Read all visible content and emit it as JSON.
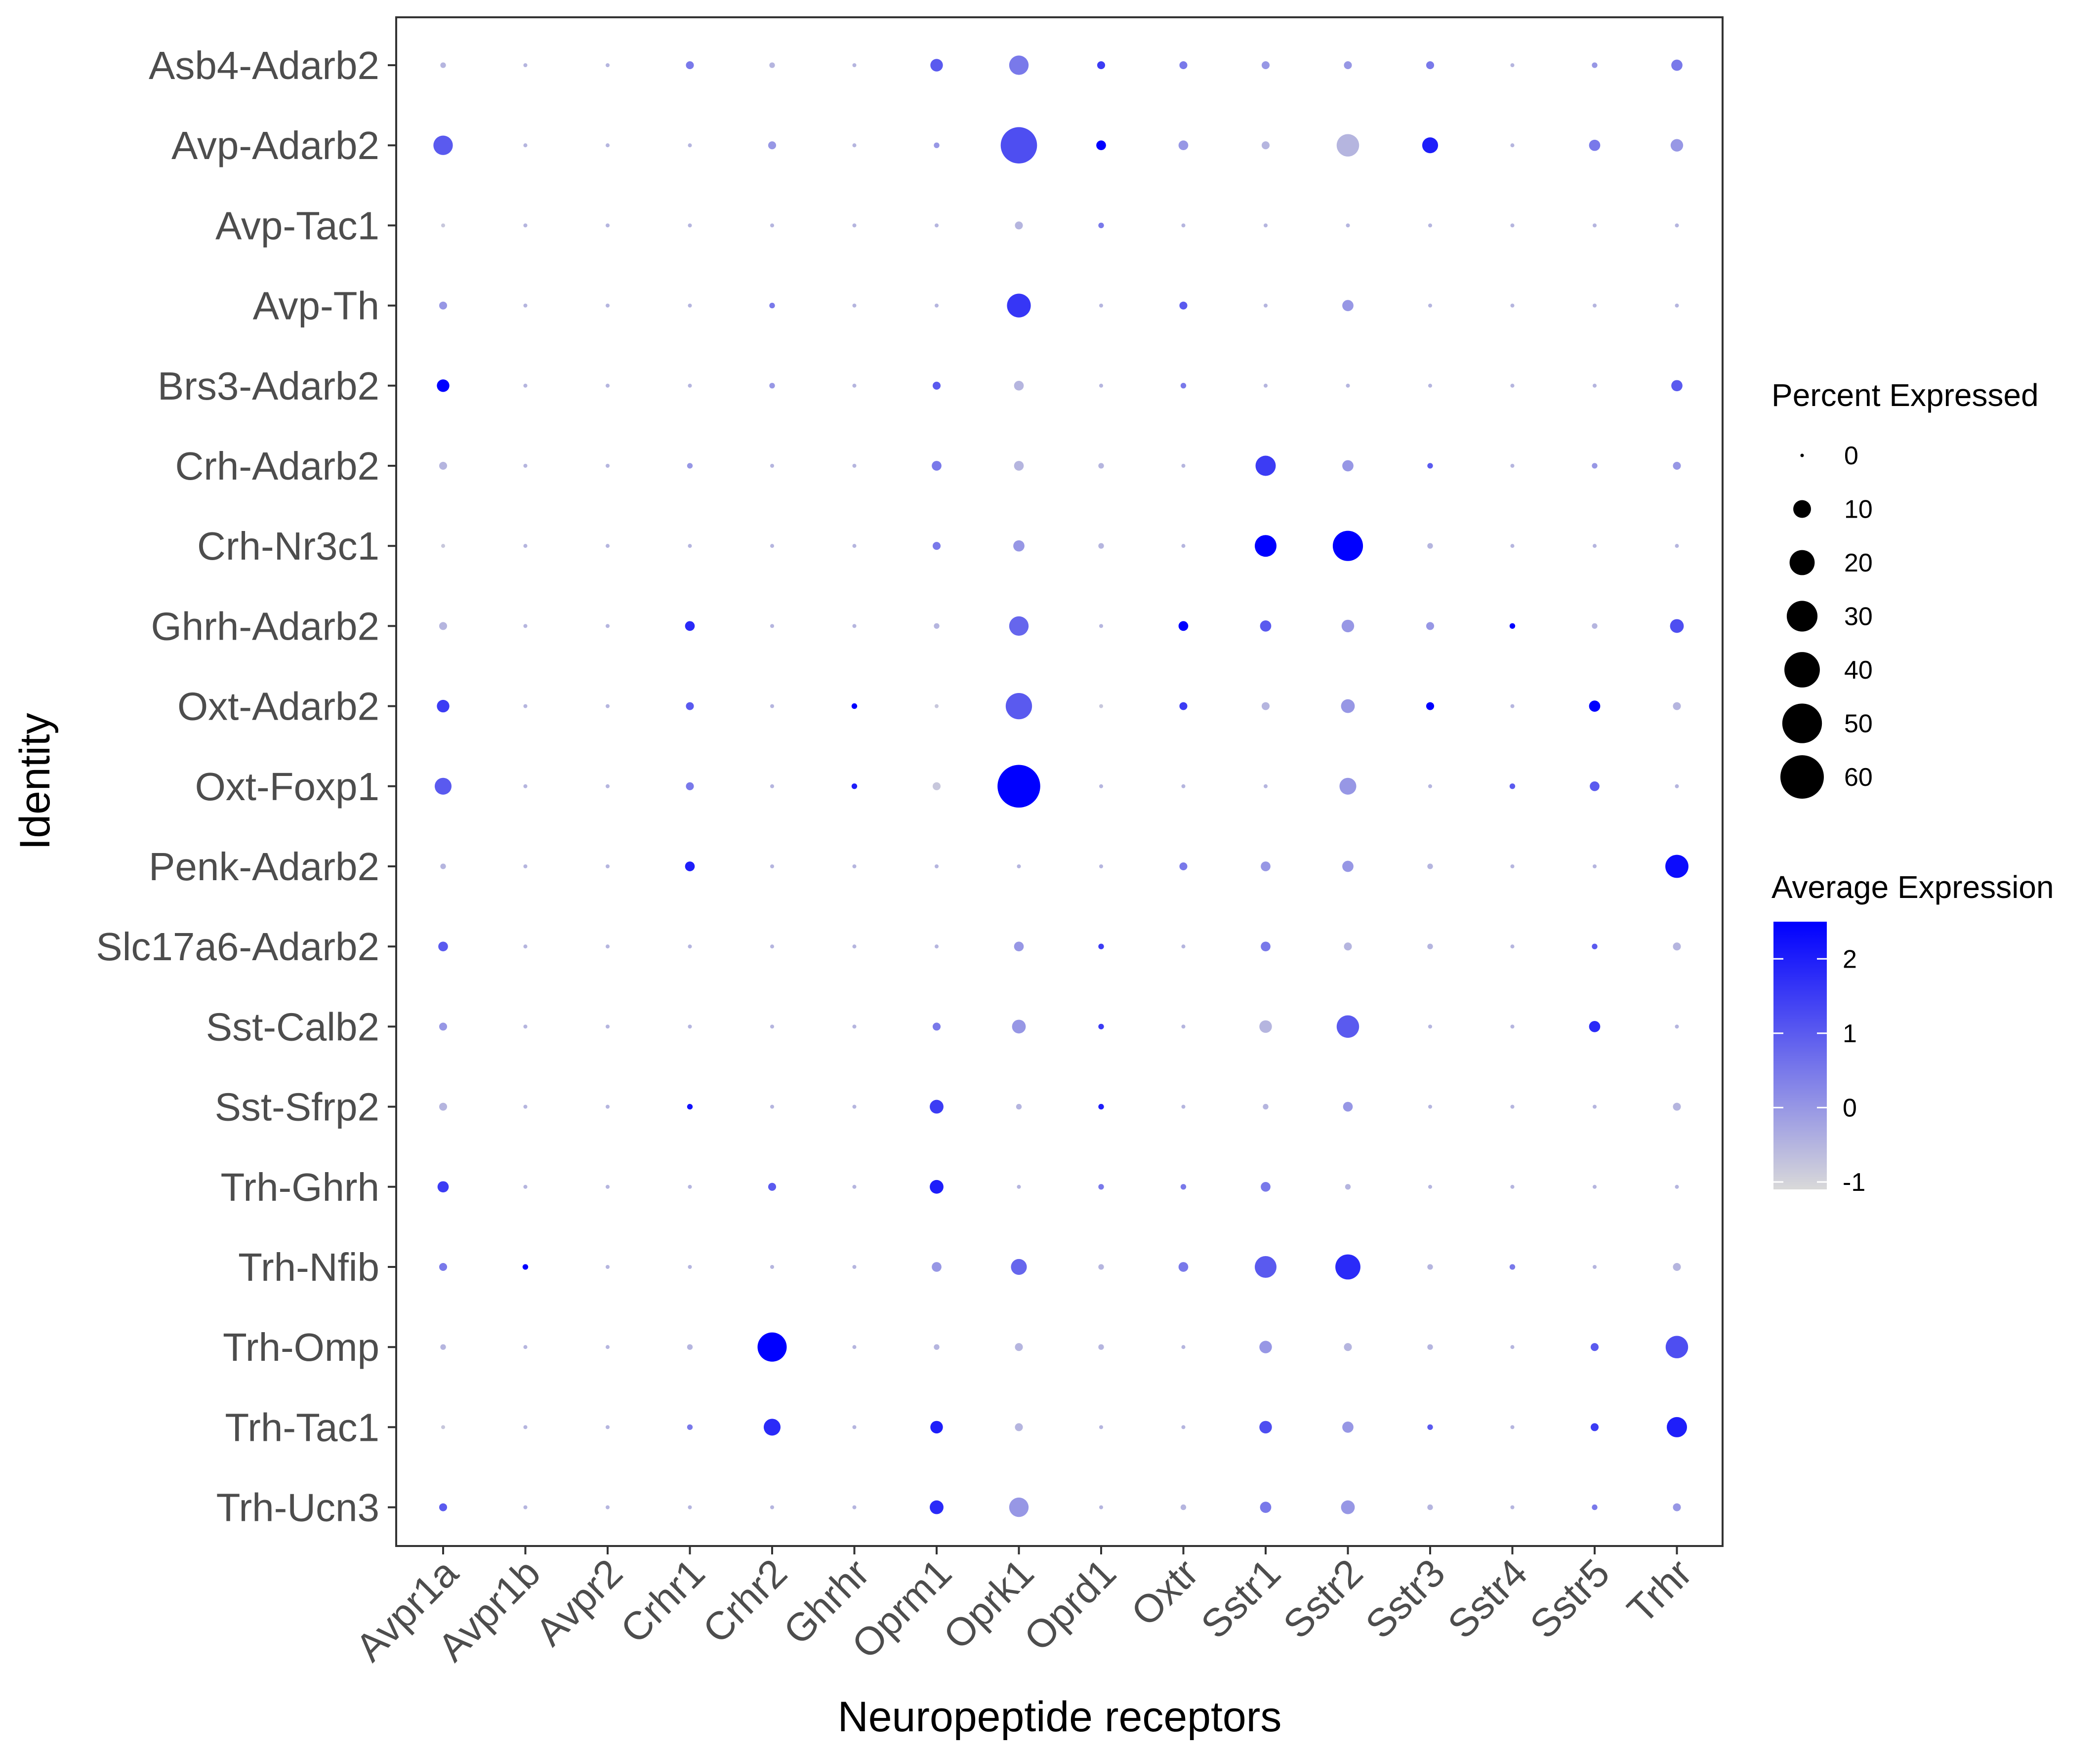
{
  "chart_data": {
    "type": "dotplot",
    "xlabel": "Neuropeptide receptors",
    "ylabel": "Identity",
    "x_categories": [
      "Avpr1a",
      "Avpr1b",
      "Avpr2",
      "Crhr1",
      "Crhr2",
      "Ghrhr",
      "Oprm1",
      "Oprk1",
      "Oprd1",
      "Oxtr",
      "Sstr1",
      "Sstr2",
      "Sstr3",
      "Sstr4",
      "Sstr5",
      "Trhr"
    ],
    "y_categories": [
      "Asb4-Adarb2",
      "Avp-Adarb2",
      "Avp-Tac1",
      "Avp-Th",
      "Brs3-Adarb2",
      "Crh-Adarb2",
      "Crh-Nr3c1",
      "Ghrh-Adarb2",
      "Oxt-Adarb2",
      "Oxt-Foxp1",
      "Penk-Adarb2",
      "Slc17a6-Adarb2",
      "Sst-Calb2",
      "Sst-Sfrp2",
      "Trh-Ghrh",
      "Trh-Nfib",
      "Trh-Omp",
      "Trh-Tac1",
      "Trh-Ucn3"
    ],
    "size_legend": {
      "title": "Percent Expressed",
      "values": [
        0,
        10,
        20,
        30,
        40,
        50,
        60
      ]
    },
    "color_legend": {
      "title": "Average Expression",
      "ticks": [
        2,
        1,
        0,
        -1
      ],
      "range": [
        -1.1,
        2.5
      ],
      "low_color": "#d9d9d9",
      "high_color": "#0000ff"
    },
    "pct_expressed": [
      [
        1,
        0.5,
        0.5,
        2,
        1,
        0.5,
        5,
        12,
        2,
        2,
        2,
        2,
        2,
        0.5,
        1,
        4
      ],
      [
        12,
        0.5,
        0.5,
        0.5,
        2,
        0.5,
        1,
        42,
        3,
        3,
        2,
        16,
        8,
        0.5,
        4,
        5
      ],
      [
        0.5,
        0.5,
        0.5,
        0.5,
        0.5,
        0.5,
        0.5,
        2,
        1,
        0.5,
        0.5,
        0.5,
        0.5,
        0.5,
        0.5,
        0.5
      ],
      [
        2,
        0.5,
        0.5,
        0.5,
        1,
        0.5,
        0.5,
        18,
        0.5,
        2,
        0.5,
        4,
        0.5,
        0.5,
        0.5,
        0.5
      ],
      [
        5,
        0.5,
        0.5,
        0.5,
        1,
        0.5,
        2,
        3,
        0.5,
        1,
        0.5,
        0.5,
        0.5,
        0.5,
        0.5,
        4
      ],
      [
        2,
        0.5,
        0.5,
        1,
        0.5,
        0.5,
        3,
        3,
        1,
        0.5,
        13,
        4,
        1,
        0.5,
        1,
        2
      ],
      [
        0.5,
        0.5,
        0.5,
        0.5,
        0.5,
        0.5,
        2,
        4,
        1,
        0.5,
        15,
        29,
        1,
        0.5,
        0.5,
        0.5
      ],
      [
        2,
        0.5,
        0.5,
        3,
        0.5,
        0.5,
        1,
        12,
        0.5,
        3,
        4,
        5,
        2,
        1,
        1,
        6
      ],
      [
        5,
        0.5,
        0.5,
        2,
        0.5,
        1,
        0.5,
        22,
        0.5,
        2,
        2,
        6,
        2,
        0.5,
        4,
        2
      ],
      [
        9,
        0.5,
        0.5,
        2,
        0.5,
        1,
        2,
        58,
        0.5,
        0.5,
        0.5,
        9,
        0.5,
        1,
        3,
        0.5
      ],
      [
        1,
        0.5,
        0.5,
        3,
        0.5,
        0.5,
        0.5,
        0.5,
        0.5,
        2,
        3,
        4,
        1,
        0.5,
        0.5,
        17
      ],
      [
        3,
        0.5,
        0.5,
        0.5,
        0.5,
        0.5,
        0.5,
        3,
        1,
        0.5,
        3,
        2,
        1,
        0.5,
        1,
        2
      ],
      [
        2,
        0.5,
        0.5,
        0.5,
        0.5,
        0.5,
        2,
        6,
        1,
        0.5,
        5,
        16,
        0.5,
        0.5,
        4,
        0.5
      ],
      [
        2,
        0.5,
        0.5,
        1,
        0.5,
        0.5,
        6,
        1,
        1,
        0.5,
        1,
        3,
        0.5,
        0.5,
        0.5,
        2
      ],
      [
        4,
        0.5,
        0.5,
        0.5,
        2,
        0.5,
        6,
        0.5,
        1,
        1,
        3,
        1,
        0.5,
        0.5,
        0.5,
        0.5
      ],
      [
        2,
        1,
        0.5,
        0.5,
        0.5,
        0.5,
        3,
        8,
        1,
        3,
        15,
        20,
        1,
        1,
        0.5,
        2
      ],
      [
        1,
        0.5,
        0.5,
        1,
        27,
        0.5,
        1,
        2,
        1,
        0.5,
        5,
        2,
        1,
        0.5,
        2,
        16
      ],
      [
        0.5,
        0.5,
        0.5,
        1,
        9,
        0.5,
        5,
        2,
        0.5,
        0.5,
        5,
        4,
        1,
        0.5,
        2,
        13
      ],
      [
        2,
        0.5,
        0.5,
        0.5,
        0.5,
        0.5,
        6,
        12,
        0.5,
        1,
        4,
        6,
        1,
        0.5,
        1,
        2
      ]
    ],
    "avg_expression": [
      [
        -0.5,
        -0.5,
        -0.5,
        0.5,
        -0.5,
        -0.5,
        1.0,
        0.5,
        1.5,
        0.5,
        0.0,
        0.0,
        0.5,
        -0.5,
        0.0,
        0.5
      ],
      [
        1.0,
        -0.5,
        -0.5,
        -0.5,
        0.0,
        -0.5,
        0.0,
        1.2,
        2.5,
        0.0,
        -0.5,
        -0.5,
        2.0,
        -0.5,
        0.5,
        0.0
      ],
      [
        -0.8,
        -0.5,
        -0.5,
        -0.5,
        -0.5,
        -0.5,
        -0.5,
        -0.5,
        0.5,
        -0.5,
        -0.5,
        -0.5,
        -0.5,
        -0.5,
        -0.5,
        -0.5
      ],
      [
        0.0,
        -0.5,
        -0.5,
        -0.5,
        0.5,
        -0.5,
        -0.5,
        1.6,
        -0.5,
        1.0,
        -0.5,
        0.0,
        -0.5,
        -0.5,
        -0.5,
        -0.5
      ],
      [
        2.5,
        -0.5,
        -0.5,
        -0.5,
        0.0,
        -0.5,
        1.0,
        -0.5,
        -0.5,
        0.5,
        -0.5,
        -0.5,
        -0.5,
        -0.5,
        -0.5,
        1.0
      ],
      [
        -0.5,
        -0.5,
        -0.5,
        0.0,
        -0.5,
        -0.5,
        0.5,
        -0.5,
        -0.5,
        -0.5,
        1.5,
        0.0,
        1.0,
        -0.5,
        0.0,
        0.0
      ],
      [
        -0.8,
        -0.5,
        -0.5,
        -0.5,
        -0.5,
        -0.5,
        0.5,
        0.0,
        -0.5,
        -0.5,
        2.5,
        2.5,
        -0.5,
        -0.5,
        -0.5,
        -0.5
      ],
      [
        -0.5,
        -0.5,
        -0.5,
        1.8,
        -0.5,
        -0.5,
        -0.5,
        0.8,
        -0.5,
        2.5,
        1.0,
        0.0,
        0.0,
        2.5,
        -0.5,
        1.2
      ],
      [
        1.5,
        -0.5,
        -0.5,
        1.0,
        -0.5,
        2.5,
        -0.8,
        1.0,
        -0.8,
        1.5,
        -0.5,
        0.0,
        2.5,
        -0.5,
        2.5,
        -0.5
      ],
      [
        1.0,
        -0.5,
        -0.5,
        0.5,
        -0.5,
        2.0,
        -0.8,
        2.5,
        -0.5,
        -0.5,
        -0.5,
        0.0,
        -0.5,
        1.0,
        1.0,
        -0.5
      ],
      [
        -0.5,
        -0.5,
        -0.5,
        2.0,
        -0.5,
        -0.5,
        -0.5,
        -0.5,
        -0.5,
        0.5,
        0.0,
        0.0,
        -0.5,
        -0.5,
        -0.5,
        2.3
      ],
      [
        1.0,
        -0.5,
        -0.5,
        -0.5,
        -0.5,
        -0.5,
        -0.5,
        0.0,
        1.5,
        -0.5,
        0.5,
        -0.5,
        -0.5,
        -0.5,
        1.0,
        -0.5
      ],
      [
        0.0,
        -0.5,
        -0.5,
        -0.5,
        -0.5,
        -0.5,
        0.5,
        0.0,
        1.5,
        -0.5,
        -0.5,
        1.0,
        -0.5,
        -0.5,
        1.8,
        -0.5
      ],
      [
        -0.5,
        -0.5,
        -0.5,
        2.2,
        -0.5,
        -0.5,
        1.5,
        -0.5,
        2.0,
        -0.5,
        -0.5,
        0.0,
        -0.5,
        -0.5,
        -0.5,
        -0.5
      ],
      [
        1.5,
        -0.5,
        -0.5,
        -0.5,
        1.0,
        -0.5,
        2.0,
        -0.5,
        0.5,
        0.5,
        0.5,
        -0.5,
        -0.5,
        -0.5,
        -0.5,
        -0.5
      ],
      [
        0.5,
        2.5,
        -0.5,
        -0.5,
        -0.5,
        -0.5,
        0.0,
        0.8,
        -0.5,
        0.5,
        1.0,
        1.8,
        -0.5,
        0.5,
        -0.5,
        -0.5
      ],
      [
        -0.5,
        -0.5,
        -0.5,
        -0.5,
        2.5,
        -0.5,
        -0.5,
        -0.5,
        -0.5,
        -0.5,
        0.0,
        -0.5,
        -0.5,
        -0.5,
        1.0,
        1.2
      ],
      [
        -0.8,
        -0.5,
        -0.5,
        0.5,
        1.8,
        -0.5,
        2.0,
        -0.5,
        -0.5,
        -0.5,
        1.2,
        0.0,
        1.0,
        -0.5,
        1.5,
        2.0
      ],
      [
        1.0,
        -0.5,
        -0.5,
        -0.5,
        -0.5,
        -0.5,
        1.8,
        0.0,
        -0.5,
        -0.5,
        0.5,
        0.0,
        -0.5,
        -0.5,
        0.5,
        0.0
      ]
    ],
    "grid": false
  }
}
